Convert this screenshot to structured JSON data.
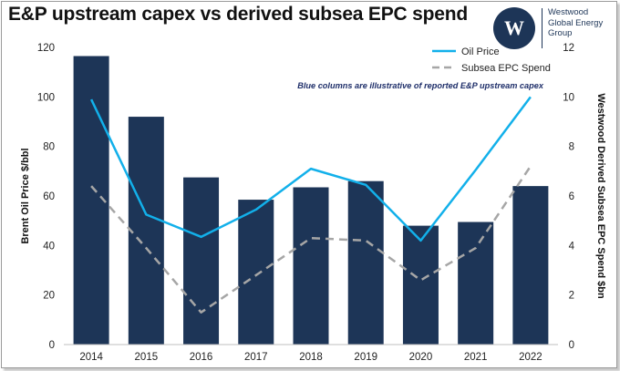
{
  "header": {
    "title": "E&P upstream capex vs derived subsea EPC spend",
    "logo_mark": "W",
    "logo_lines": [
      "Westwood",
      "Global Energy",
      "Group"
    ]
  },
  "colors": {
    "bar": "#1d3557",
    "oil_line": "#12b0ea",
    "epc_line": "#a6a6a6"
  },
  "chart_data": {
    "type": "bar",
    "categories": [
      "2014",
      "2015",
      "2016",
      "2017",
      "2018",
      "2019",
      "2020",
      "2021",
      "2022"
    ],
    "bar_values": [
      116.5,
      92,
      67.5,
      58.5,
      63.5,
      66,
      48,
      49.5,
      64
    ],
    "bar_axis": "left",
    "series": [
      {
        "name": "Oil Price",
        "axis": "left",
        "style": "solid",
        "values": [
          99,
          52.5,
          43.5,
          54.5,
          71,
          64.5,
          42,
          70.5,
          100
        ]
      },
      {
        "name": "Subsea EPC Spend",
        "axis": "right",
        "style": "dashed",
        "values": [
          6.4,
          3.9,
          1.3,
          2.8,
          4.3,
          4.2,
          2.6,
          3.9,
          7.2
        ]
      }
    ],
    "ylabel": "Brent Oil Price $/bbl",
    "y2label": "Westwood Derived Subsea EPC Spend $bn",
    "ylim": [
      0,
      120
    ],
    "y2lim": [
      0,
      12
    ],
    "yticks": [
      0,
      20,
      40,
      60,
      80,
      100,
      120
    ],
    "y2ticks": [
      0,
      2,
      4,
      6,
      8,
      10,
      12
    ],
    "annotation": "Blue columns are illustrative of reported E&P upstream capex",
    "legend_position": "top-right",
    "grid": false
  }
}
